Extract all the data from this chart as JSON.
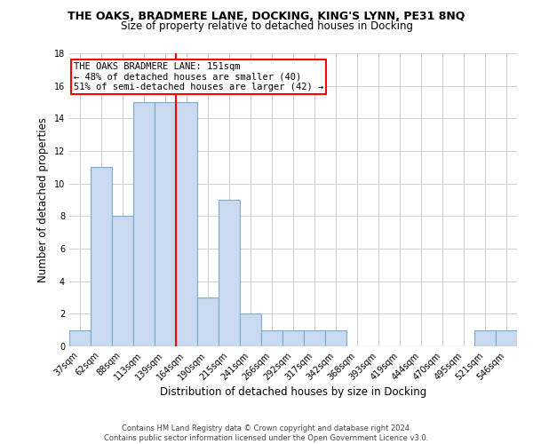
{
  "title1": "THE OAKS, BRADMERE LANE, DOCKING, KING'S LYNN, PE31 8NQ",
  "title2": "Size of property relative to detached houses in Docking",
  "xlabel": "Distribution of detached houses by size in Docking",
  "ylabel": "Number of detached properties",
  "bar_labels": [
    "37sqm",
    "62sqm",
    "88sqm",
    "113sqm",
    "139sqm",
    "164sqm",
    "190sqm",
    "215sqm",
    "241sqm",
    "266sqm",
    "292sqm",
    "317sqm",
    "342sqm",
    "368sqm",
    "393sqm",
    "419sqm",
    "444sqm",
    "470sqm",
    "495sqm",
    "521sqm",
    "546sqm"
  ],
  "bar_values": [
    1,
    11,
    8,
    15,
    15,
    15,
    3,
    9,
    2,
    1,
    1,
    1,
    1,
    0,
    0,
    0,
    0,
    0,
    0,
    1,
    1
  ],
  "bar_color": "#c8d9f0",
  "bar_edge_color": "#7aaad0",
  "red_line_x": 4.5,
  "ylim": [
    0,
    18
  ],
  "yticks": [
    0,
    2,
    4,
    6,
    8,
    10,
    12,
    14,
    16,
    18
  ],
  "annotation_box_text": "THE OAKS BRADMERE LANE: 151sqm\n← 48% of detached houses are smaller (40)\n51% of semi-detached houses are larger (42) →",
  "footer1": "Contains HM Land Registry data © Crown copyright and database right 2024.",
  "footer2": "Contains public sector information licensed under the Open Government Licence v3.0.",
  "background_color": "#ffffff",
  "grid_color": "#d0d0d0",
  "title1_fontsize": 9.0,
  "title2_fontsize": 8.5,
  "xlabel_fontsize": 8.5,
  "ylabel_fontsize": 8.5,
  "tick_fontsize": 7.0,
  "footer_fontsize": 6.0,
  "ann_fontsize": 7.5
}
